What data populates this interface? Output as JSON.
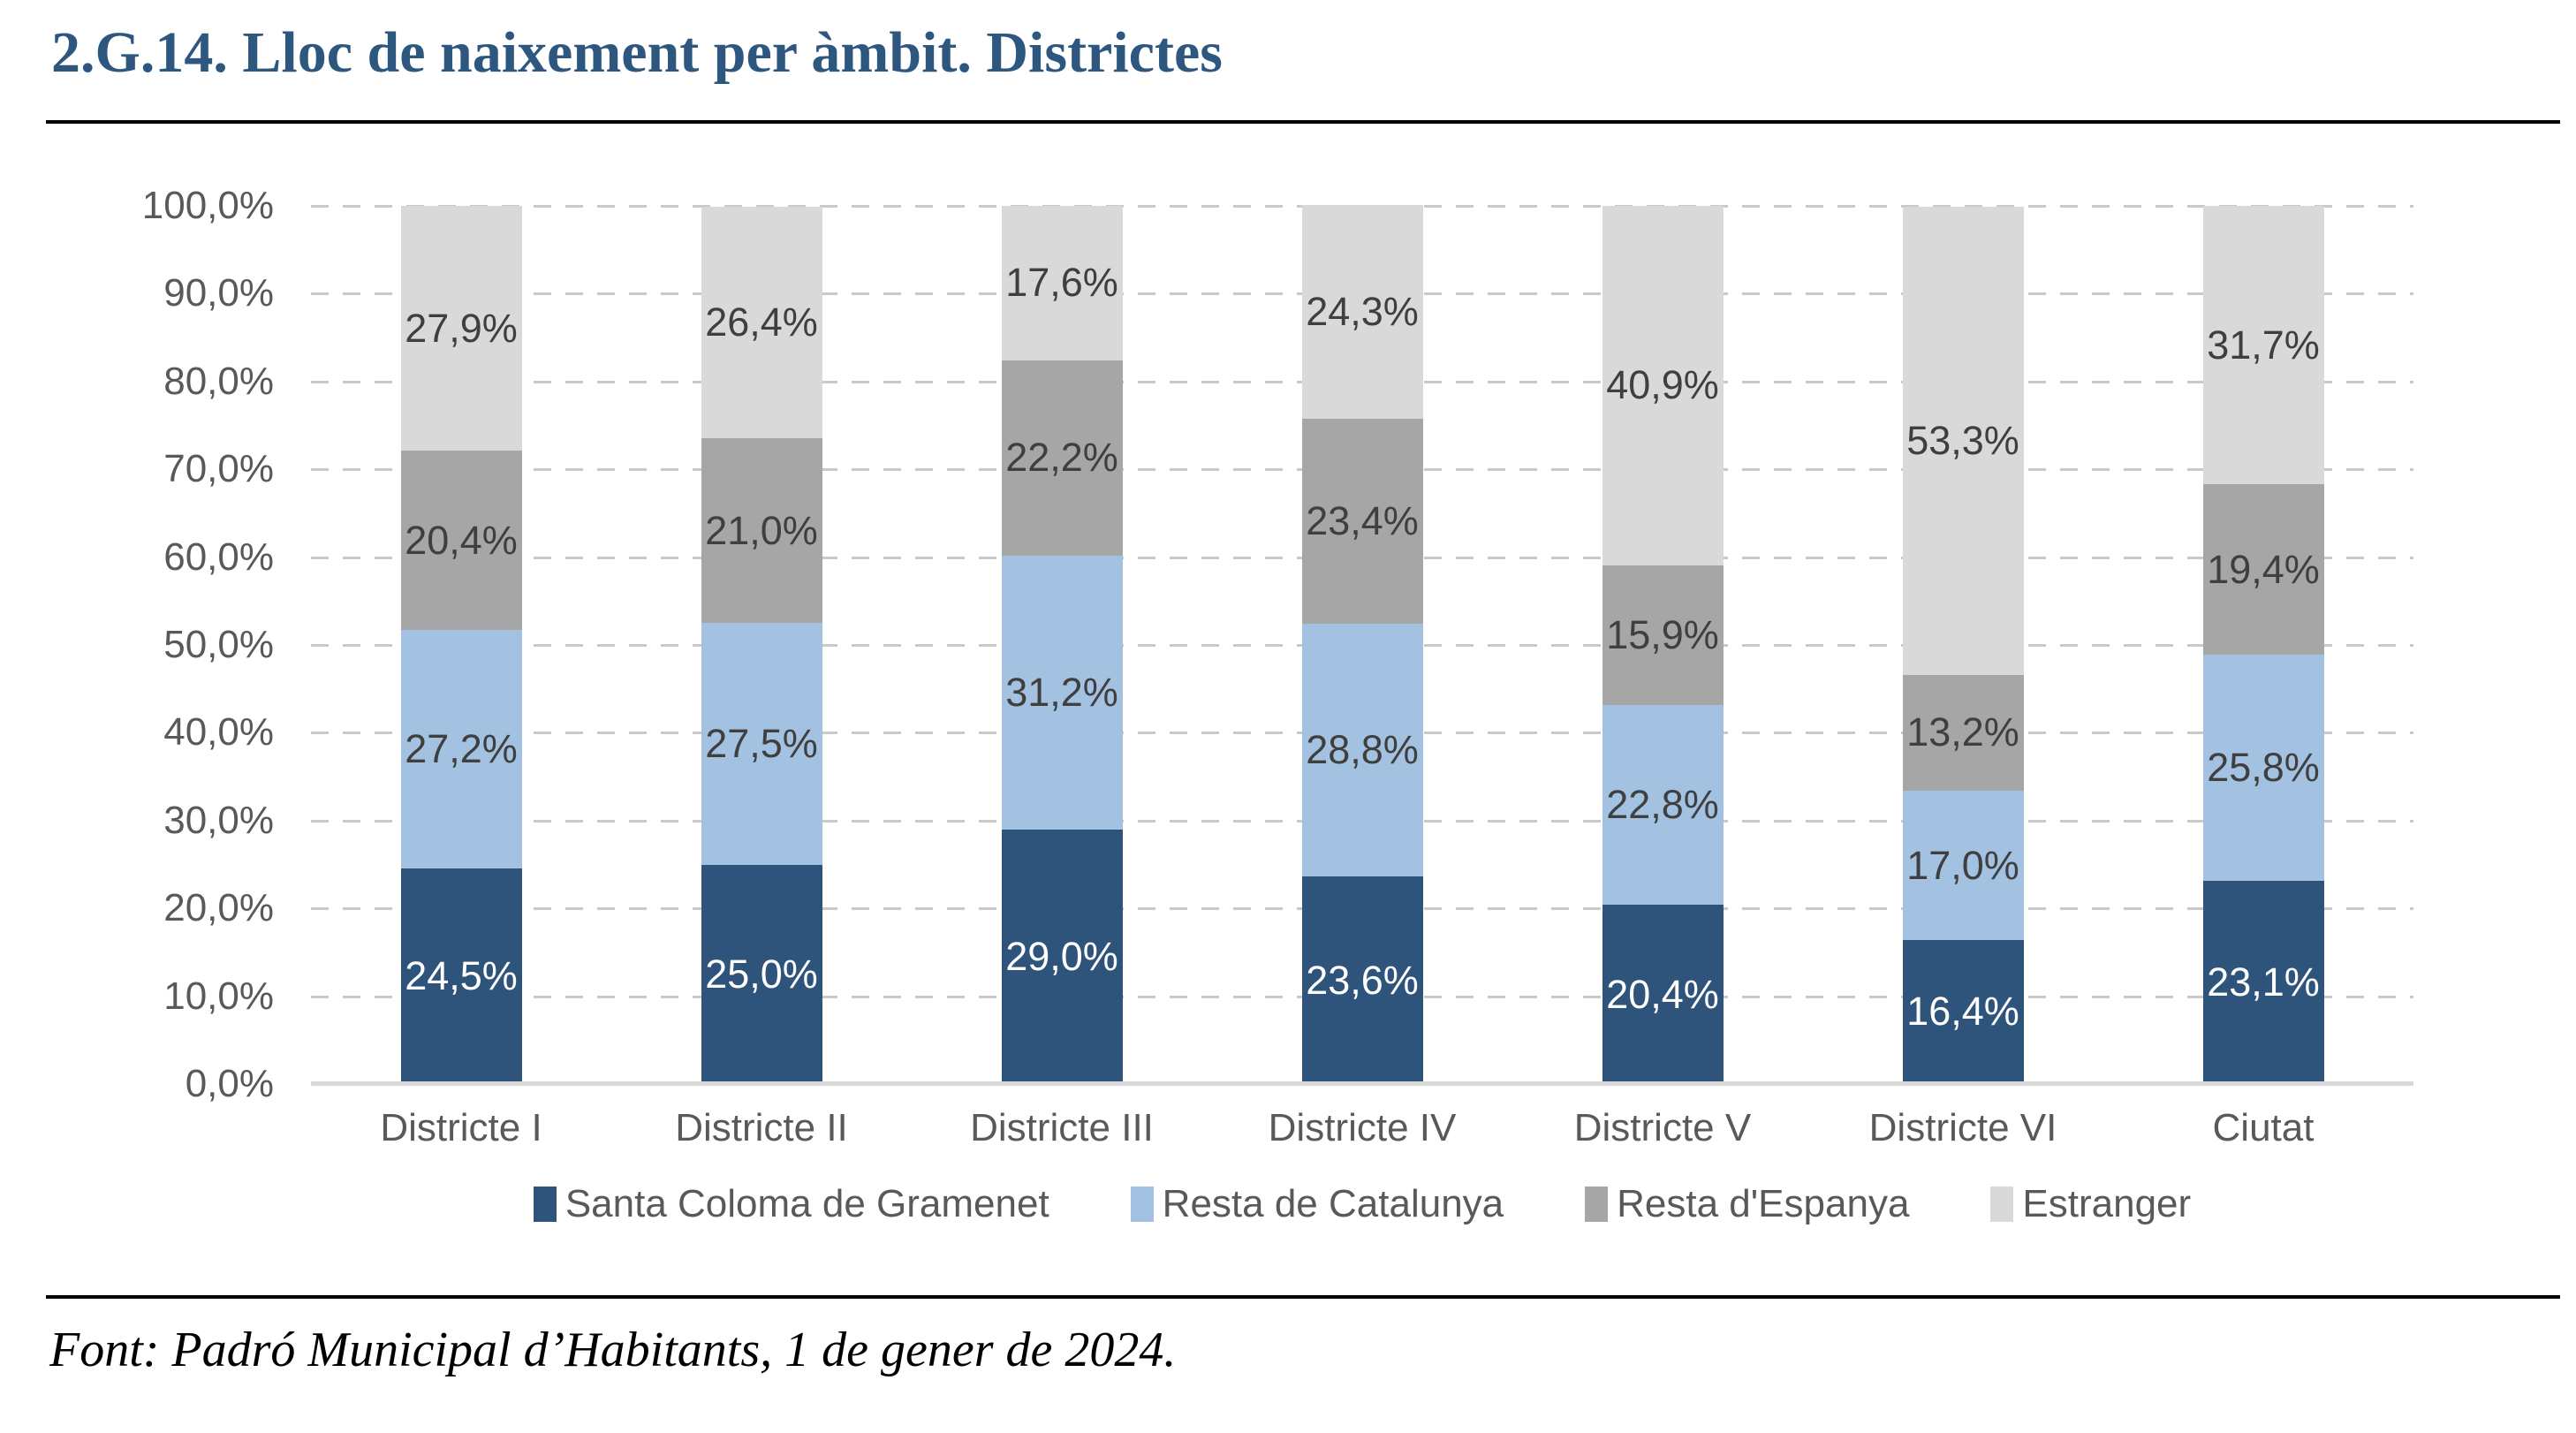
{
  "title": "2.G.14. Lloc de naixement per àmbit. Districtes",
  "footer": "Font: Padró Municipal d’Habitants, 1 de gener de 2024.",
  "colors": {
    "title_text": "#2E5780",
    "grid_dash": "#C9C9C9",
    "axis_line": "#D9D9D9",
    "tick_label": "#595959",
    "data_label": "#3F3F3F",
    "data_label_on_dark": "#FFFFFF",
    "rule": "#000000"
  },
  "chart_data": {
    "type": "bar",
    "stacked": true,
    "orientation": "vertical",
    "title": "2.G.14. Lloc de naixement per àmbit. Districtes",
    "categories": [
      "Districte I",
      "Districte II",
      "Districte III",
      "Districte IV",
      "Districte V",
      "Districte VI",
      "Ciutat"
    ],
    "series": [
      {
        "name": "Santa Coloma de Gramenet",
        "color": "#2E547B",
        "values": [
          24.5,
          25.0,
          29.0,
          23.6,
          20.4,
          16.4,
          23.1
        ]
      },
      {
        "name": "Resta de Catalunya",
        "color": "#A3C1E0",
        "values": [
          27.2,
          27.5,
          31.2,
          28.8,
          22.8,
          17.0,
          25.8
        ]
      },
      {
        "name": "Resta d'Espanya",
        "color": "#A6A6A6",
        "values": [
          20.4,
          21.0,
          22.2,
          23.4,
          15.9,
          13.2,
          19.4
        ]
      },
      {
        "name": "Estranger",
        "color": "#D9D9D9",
        "values": [
          27.9,
          26.4,
          17.6,
          24.3,
          40.9,
          53.3,
          31.7
        ]
      }
    ],
    "y_ticks": [
      "100,0%",
      "90,0%",
      "80,0%",
      "70,0%",
      "60,0%",
      "50,0%",
      "40,0%",
      "30,0%",
      "20,0%",
      "10,0%",
      "0,0%"
    ],
    "ylim": [
      0,
      100
    ],
    "xlabel": "",
    "ylabel": "",
    "grid": "horizontal-dashed",
    "legend_position": "bottom",
    "label_format": "one-decimal comma percent, centered in segment",
    "first_series_label_color": "white"
  }
}
